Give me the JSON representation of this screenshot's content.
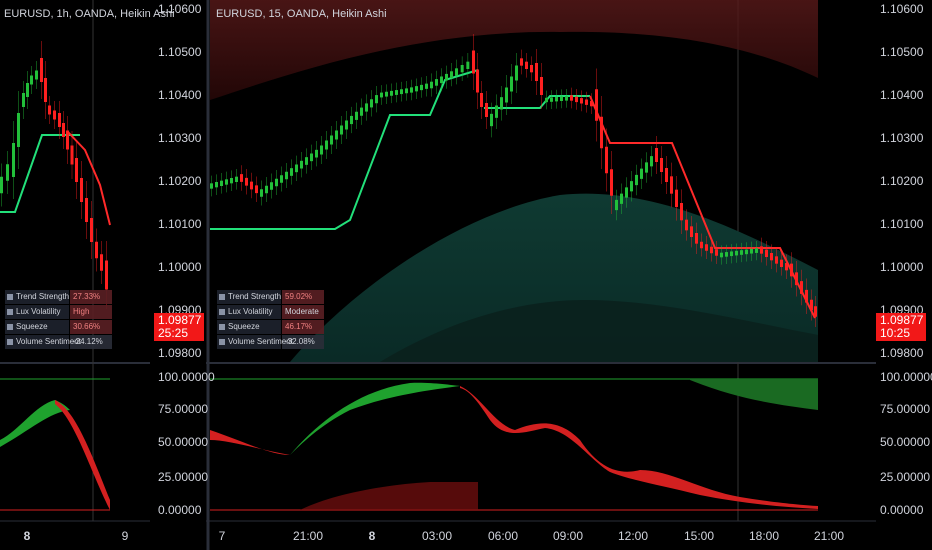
{
  "panes": [
    {
      "header": "EURUSD, 1h, OANDA, Heikin Ashi",
      "price_labels": [
        "1.10600",
        "1.10500",
        "1.10400",
        "1.10300",
        "1.10200",
        "1.10100",
        "1.10000",
        "1.09900",
        "1.09800"
      ],
      "current_price": "1.09877",
      "countdown": "25:25",
      "indicator_labels": [
        "100.00000",
        "75.00000",
        "50.00000",
        "25.00000",
        "0.00000"
      ],
      "time_labels": [
        "8",
        "9"
      ],
      "table": [
        {
          "label": "Trend Strength",
          "value": "27.33%"
        },
        {
          "label": "Lux Volatility",
          "value": "High"
        },
        {
          "label": "Squeeze",
          "value": "30.66%"
        },
        {
          "label": "Volume Sentiment",
          "value": "-24.12%"
        }
      ]
    },
    {
      "header": "EURUSD, 15, OANDA, Heikin Ashi",
      "price_labels": [
        "1.10600",
        "1.10500",
        "1.10400",
        "1.10300",
        "1.10200",
        "1.10100",
        "1.10000",
        "1.09900",
        "1.09800"
      ],
      "current_price": "1.09877",
      "countdown": "10:25",
      "indicator_labels": [
        "100.00000",
        "75.00000",
        "50.00000",
        "25.00000",
        "0.00000"
      ],
      "time_labels": [
        "7",
        "21:00",
        "8",
        "03:00",
        "06:00",
        "09:00",
        "12:00",
        "15:00",
        "18:00",
        "21:00"
      ],
      "table": [
        {
          "label": "Trend Strength",
          "value": "59.02%"
        },
        {
          "label": "Lux Volatility",
          "value": "Moderate"
        },
        {
          "label": "Squeeze",
          "value": "46.17%"
        },
        {
          "label": "Volume Sentiment",
          "value": "-32.08%"
        }
      ]
    }
  ]
}
